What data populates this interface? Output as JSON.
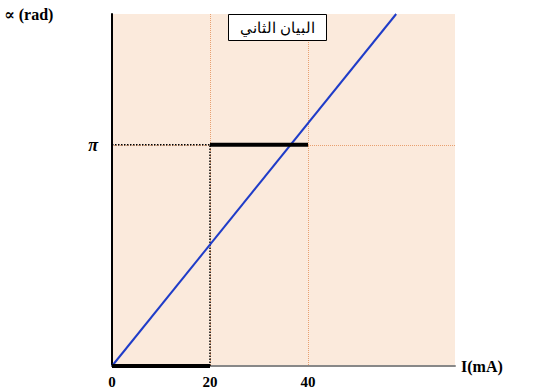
{
  "chart_data": {
    "type": "line",
    "title": "البيان الثاني",
    "x_label": "I(mA)",
    "y_label": "∝ (rad)",
    "xlim": [
      0,
      70
    ],
    "xticks": [
      0,
      20,
      40
    ],
    "ylim": [
      0,
      5
    ],
    "yticks": [
      {
        "value": 3.14159,
        "label": "π"
      }
    ],
    "grid": true,
    "series": [
      {
        "x": [
          20,
          20
        ],
        "values": [
          0,
          3.14159
        ],
        "color": "#000000",
        "line_style": "dotted"
      },
      {
        "x": [
          0,
          40
        ],
        "values": [
          3.14159,
          3.14159
        ],
        "color": "#000000",
        "line_style": "dotted"
      },
      {
        "x": [
          0,
          58
        ],
        "values": [
          0,
          5
        ],
        "color": "#1f3cc8",
        "line_style": "solid"
      },
      {
        "x": [
          0,
          20
        ],
        "values": [
          0,
          0
        ],
        "color": "#000000",
        "line_style": "solid"
      },
      {
        "x": [
          20,
          40
        ],
        "values": [
          3.14159,
          3.14159
        ],
        "color": "#000000",
        "line_style": "solid"
      }
    ]
  }
}
